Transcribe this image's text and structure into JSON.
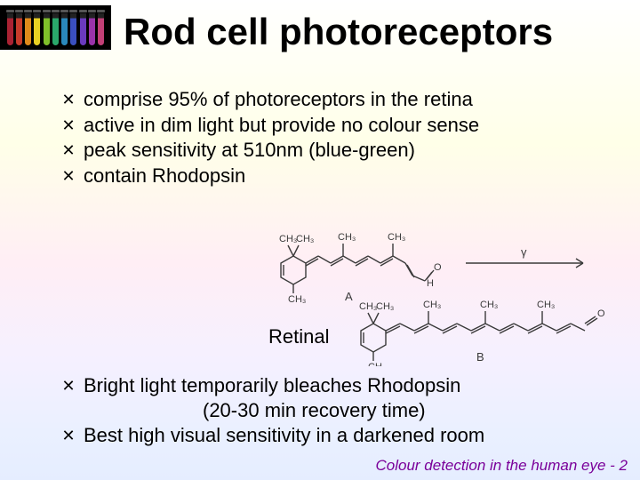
{
  "title": "Rod cell photoreceptors",
  "corner_image": {
    "background": "#000000",
    "tube_colors": [
      "#aa2233",
      "#c73b2b",
      "#e08a1a",
      "#e8d023",
      "#7fbf2a",
      "#2aa86b",
      "#2a88bb",
      "#3a4fbf",
      "#6a3abf",
      "#9a33aa",
      "#c24077"
    ]
  },
  "bullet_glyph": "✕",
  "upper_bullets": [
    "comprise 95% of photoreceptors in the retina",
    "active in dim light but provide no colour sense",
    "peak sensitivity at 510nm (blue-green)",
    "contain Rhodopsin"
  ],
  "retinal": {
    "label": "Retinal",
    "mol_A_letter": "A",
    "mol_B_letter": "B",
    "ch3_label": "CH₃",
    "arrow_label": "γ",
    "oxygen_label": "O",
    "stroke": "#3a3a3a",
    "stroke_width": 1.4,
    "label_color": "#3a3a3a",
    "label_fontsize": 11
  },
  "lower_bullets": [
    "Bright light temporarily bleaches Rhodopsin",
    "Best high visual sensitivity in a darkened room"
  ],
  "lower_indent_line": "(20-30 min recovery time)",
  "footer": "Colour detection in the human eye - 2",
  "footer_color": "#7a0099"
}
